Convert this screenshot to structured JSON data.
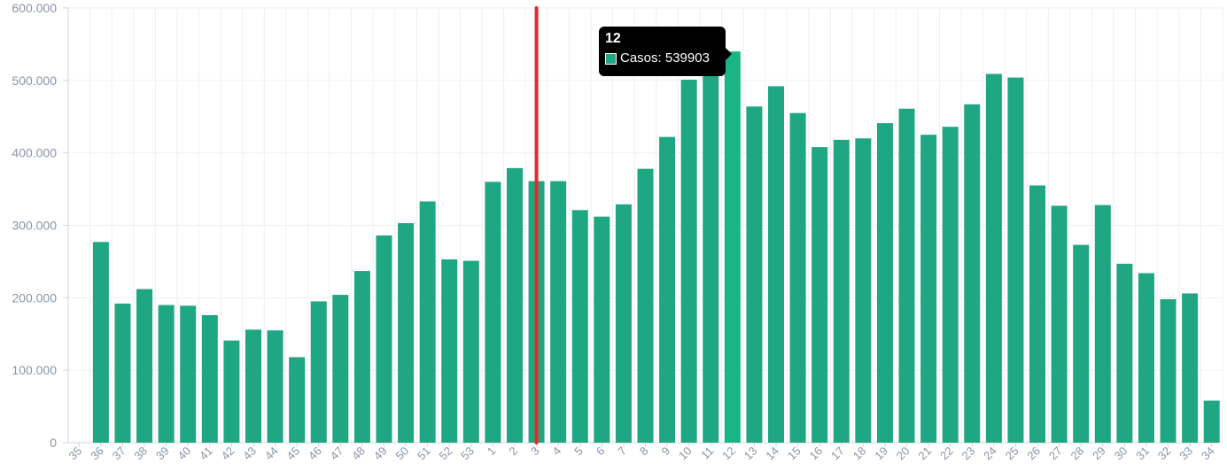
{
  "chart_data": {
    "type": "bar",
    "categories": [
      "35",
      "36",
      "37",
      "38",
      "39",
      "40",
      "41",
      "42",
      "43",
      "44",
      "45",
      "46",
      "47",
      "48",
      "49",
      "50",
      "51",
      "52",
      "53",
      "1",
      "2",
      "3",
      "4",
      "5",
      "6",
      "7",
      "8",
      "9",
      "10",
      "11",
      "12",
      "13",
      "14",
      "15",
      "16",
      "17",
      "18",
      "19",
      "20",
      "21",
      "22",
      "23",
      "24",
      "25",
      "26",
      "27",
      "28",
      "29",
      "30",
      "31",
      "32",
      "33",
      "34"
    ],
    "series": [
      {
        "name": "Casos",
        "values": [
          0,
          277000,
          192000,
          212000,
          190000,
          189000,
          176000,
          141000,
          156000,
          155000,
          118000,
          195000,
          204000,
          237000,
          286000,
          303000,
          333000,
          253000,
          251000,
          360000,
          379000,
          361000,
          361000,
          321000,
          312000,
          329000,
          378000,
          422000,
          501000,
          525000,
          539903,
          464000,
          492000,
          455000,
          408000,
          418000,
          420000,
          441000,
          461000,
          425000,
          436000,
          467000,
          509000,
          504000,
          355000,
          327000,
          273000,
          328000,
          247000,
          234000,
          198000,
          206000,
          58000
        ]
      }
    ],
    "ylim": [
      0,
      600000
    ],
    "yticks": [
      "0",
      "100.000",
      "200.000",
      "300.000",
      "400.000",
      "500.000",
      "600.000"
    ],
    "xlabel": "",
    "ylabel": "",
    "grid": true,
    "colors": {
      "bar": "#1fa683",
      "bar_highlight": "#1ab585",
      "marker_line": "#e8282e",
      "grid": "#f0f0f0",
      "axis": "#cfd5dd",
      "tick_text": "#8b94a8"
    },
    "highlight_category": "12",
    "marker_category": "3"
  },
  "tooltip": {
    "title": "12",
    "label": "Casos: 539903",
    "swatch_color": "#1fa683"
  }
}
